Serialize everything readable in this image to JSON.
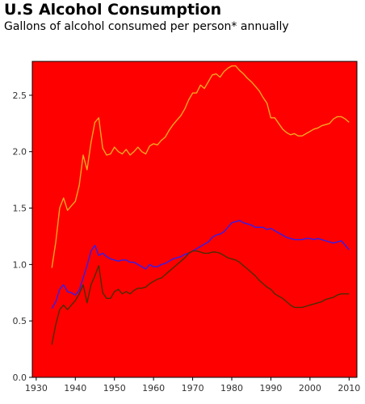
{
  "header": {
    "title": "U.S Alcohol Consumption",
    "subtitle": "Gallons of alcohol consumed per person* annually"
  },
  "chart_data": {
    "type": "line",
    "title": "U.S Alcohol Consumption",
    "subtitle": "Gallons of alcohol consumed per person* annually",
    "xlabel": "",
    "ylabel": "",
    "xlim": [
      1929,
      2012
    ],
    "ylim": [
      0,
      2.8
    ],
    "xticks": [
      1930,
      1940,
      1950,
      1960,
      1970,
      1980,
      1990,
      2000,
      2010
    ],
    "yticks": [
      0.0,
      0.5,
      1.0,
      1.5,
      2.0,
      2.5
    ],
    "ytick_labels": [
      "0.0",
      "0.5",
      "1.0",
      "1.5",
      "2.0",
      "2.5"
    ],
    "grid": false,
    "legend": "none",
    "background_color": "#ff0000",
    "series": [
      {
        "color": "#f5a623",
        "x": [
          1934,
          1935,
          1936,
          1937,
          1938,
          1939,
          1940,
          1941,
          1942,
          1943,
          1944,
          1945,
          1946,
          1947,
          1948,
          1949,
          1950,
          1951,
          1952,
          1953,
          1954,
          1955,
          1956,
          1957,
          1958,
          1959,
          1960,
          1961,
          1962,
          1963,
          1964,
          1965,
          1966,
          1967,
          1968,
          1969,
          1970,
          1971,
          1972,
          1973,
          1974,
          1975,
          1976,
          1977,
          1978,
          1979,
          1980,
          1981,
          1982,
          1983,
          1984,
          1985,
          1986,
          1987,
          1988,
          1989,
          1990,
          1991,
          1992,
          1993,
          1994,
          1995,
          1996,
          1997,
          1998,
          1999,
          2000,
          2001,
          2002,
          2003,
          2004,
          2005,
          2006,
          2007,
          2008,
          2009,
          2010
        ],
        "values": [
          0.97,
          1.2,
          1.5,
          1.59,
          1.48,
          1.52,
          1.56,
          1.7,
          1.97,
          1.84,
          2.08,
          2.26,
          2.3,
          2.03,
          1.97,
          1.98,
          2.04,
          2.0,
          1.98,
          2.02,
          1.97,
          2.0,
          2.04,
          2.0,
          1.98,
          2.05,
          2.07,
          2.06,
          2.1,
          2.13,
          2.19,
          2.24,
          2.28,
          2.32,
          2.38,
          2.46,
          2.52,
          2.52,
          2.59,
          2.56,
          2.62,
          2.68,
          2.69,
          2.66,
          2.71,
          2.74,
          2.76,
          2.76,
          2.72,
          2.69,
          2.65,
          2.62,
          2.58,
          2.54,
          2.48,
          2.43,
          2.3,
          2.3,
          2.25,
          2.2,
          2.17,
          2.15,
          2.16,
          2.14,
          2.14,
          2.16,
          2.18,
          2.2,
          2.21,
          2.23,
          2.24,
          2.25,
          2.29,
          2.31,
          2.31,
          2.29,
          2.26
        ]
      },
      {
        "color": "#2f1ef0",
        "x": [
          1934,
          1935,
          1936,
          1937,
          1938,
          1939,
          1940,
          1941,
          1942,
          1943,
          1944,
          1945,
          1946,
          1947,
          1948,
          1949,
          1950,
          1951,
          1952,
          1953,
          1954,
          1955,
          1956,
          1957,
          1958,
          1959,
          1960,
          1961,
          1962,
          1963,
          1964,
          1965,
          1966,
          1967,
          1968,
          1969,
          1970,
          1971,
          1972,
          1973,
          1974,
          1975,
          1976,
          1977,
          1978,
          1979,
          1980,
          1981,
          1982,
          1983,
          1984,
          1985,
          1986,
          1987,
          1988,
          1989,
          1990,
          1991,
          1992,
          1993,
          1994,
          1995,
          1996,
          1997,
          1998,
          1999,
          2000,
          2001,
          2002,
          2003,
          2004,
          2005,
          2006,
          2007,
          2008,
          2009,
          2010
        ],
        "values": [
          0.61,
          0.67,
          0.78,
          0.82,
          0.76,
          0.75,
          0.73,
          0.77,
          0.88,
          0.99,
          1.12,
          1.17,
          1.08,
          1.1,
          1.07,
          1.05,
          1.04,
          1.03,
          1.04,
          1.04,
          1.02,
          1.02,
          1.0,
          0.98,
          0.96,
          1.0,
          0.98,
          0.98,
          1.0,
          1.01,
          1.03,
          1.05,
          1.06,
          1.07,
          1.09,
          1.1,
          1.12,
          1.14,
          1.16,
          1.18,
          1.2,
          1.24,
          1.26,
          1.27,
          1.29,
          1.33,
          1.37,
          1.38,
          1.39,
          1.37,
          1.36,
          1.35,
          1.33,
          1.33,
          1.33,
          1.31,
          1.32,
          1.3,
          1.28,
          1.26,
          1.24,
          1.23,
          1.22,
          1.22,
          1.22,
          1.23,
          1.23,
          1.22,
          1.23,
          1.22,
          1.21,
          1.2,
          1.19,
          1.2,
          1.21,
          1.17,
          1.13
        ]
      },
      {
        "color": "#4a2e00",
        "x": [
          1934,
          1935,
          1936,
          1937,
          1938,
          1939,
          1940,
          1941,
          1942,
          1943,
          1944,
          1945,
          1946,
          1947,
          1948,
          1949,
          1950,
          1951,
          1952,
          1953,
          1954,
          1955,
          1956,
          1957,
          1958,
          1959,
          1960,
          1961,
          1962,
          1963,
          1964,
          1965,
          1966,
          1967,
          1968,
          1969,
          1970,
          1971,
          1972,
          1973,
          1974,
          1975,
          1976,
          1977,
          1978,
          1979,
          1980,
          1981,
          1982,
          1983,
          1984,
          1985,
          1986,
          1987,
          1988,
          1989,
          1990,
          1991,
          1992,
          1993,
          1994,
          1995,
          1996,
          1997,
          1998,
          1999,
          2000,
          2001,
          2002,
          2003,
          2004,
          2005,
          2006,
          2007,
          2008,
          2009,
          2010
        ],
        "values": [
          0.29,
          0.47,
          0.6,
          0.64,
          0.6,
          0.64,
          0.68,
          0.74,
          0.82,
          0.66,
          0.82,
          0.9,
          0.99,
          0.75,
          0.7,
          0.7,
          0.76,
          0.78,
          0.74,
          0.76,
          0.74,
          0.77,
          0.79,
          0.79,
          0.8,
          0.83,
          0.85,
          0.87,
          0.88,
          0.91,
          0.94,
          0.97,
          1.0,
          1.03,
          1.06,
          1.1,
          1.12,
          1.12,
          1.11,
          1.1,
          1.1,
          1.11,
          1.11,
          1.1,
          1.08,
          1.06,
          1.05,
          1.04,
          1.02,
          0.99,
          0.96,
          0.93,
          0.9,
          0.86,
          0.83,
          0.8,
          0.78,
          0.74,
          0.72,
          0.7,
          0.67,
          0.64,
          0.62,
          0.62,
          0.62,
          0.63,
          0.64,
          0.65,
          0.66,
          0.67,
          0.69,
          0.7,
          0.71,
          0.73,
          0.74,
          0.74,
          0.74
        ]
      }
    ]
  }
}
